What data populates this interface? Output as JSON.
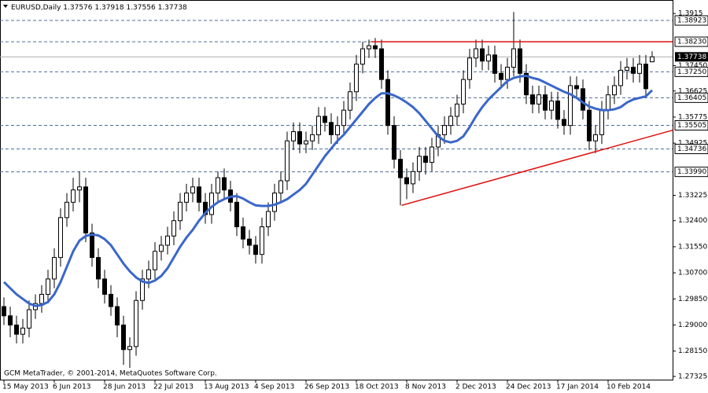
{
  "chart_data": {
    "type": "candlestick",
    "symbol": "EURUSD,Daily",
    "footer": "GCM MetaTrader, © 2001-2014, MetaQuotes Software Corp.",
    "categories": [
      "15 May 2013",
      null,
      null,
      null,
      null,
      null,
      null,
      null,
      "6 Jun 2013",
      null,
      null,
      null,
      null,
      null,
      null,
      null,
      "28 Jun 2013",
      null,
      null,
      null,
      null,
      null,
      null,
      null,
      "22 Jul 2013",
      null,
      null,
      null,
      null,
      null,
      null,
      null,
      "13 Aug 2013",
      null,
      null,
      null,
      null,
      null,
      null,
      null,
      "4 Sep 2013",
      null,
      null,
      null,
      null,
      null,
      null,
      null,
      "26 Sep 2013",
      null,
      null,
      null,
      null,
      null,
      null,
      null,
      "18 Oct 2013",
      null,
      null,
      null,
      null,
      null,
      null,
      null,
      "8 Nov 2013",
      null,
      null,
      null,
      null,
      null,
      null,
      null,
      "2 Dec 2013",
      null,
      null,
      null,
      null,
      null,
      null,
      null,
      "24 Dec 2013",
      null,
      null,
      null,
      null,
      null,
      null,
      null,
      "17 Jan 2014",
      null,
      null,
      null,
      null,
      null,
      null,
      null,
      "10 Feb 2014",
      null,
      null,
      null,
      null,
      null,
      null,
      null
    ],
    "open": [
      1.296,
      1.293,
      1.29,
      1.287,
      1.289,
      1.295,
      1.297,
      1.3,
      1.305,
      1.312,
      1.325,
      1.33,
      1.334,
      1.335,
      1.32,
      1.312,
      1.305,
      1.3,
      1.296,
      1.29,
      1.282,
      1.283,
      1.298,
      1.305,
      1.308,
      1.314,
      1.316,
      1.319,
      1.324,
      1.33,
      1.333,
      1.335,
      1.33,
      1.326,
      1.333,
      1.338,
      1.334,
      1.33,
      1.322,
      1.318,
      1.316,
      1.313,
      1.322,
      1.327,
      1.333,
      1.337,
      1.35,
      1.353,
      1.349,
      1.35,
      1.352,
      1.358,
      1.356,
      1.352,
      1.355,
      1.36,
      1.366,
      1.375,
      1.38,
      1.381,
      1.38,
      1.37,
      1.355,
      1.344,
      1.338,
      1.336,
      1.34,
      1.345,
      1.343,
      1.348,
      1.352,
      1.355,
      1.358,
      1.362,
      1.37,
      1.377,
      1.38,
      1.376,
      1.378,
      1.372,
      1.37,
      1.374,
      1.38,
      1.372,
      1.365,
      1.362,
      1.365,
      1.36,
      1.363,
      1.357,
      1.355,
      1.368,
      1.367,
      1.36,
      1.35,
      1.352,
      1.36,
      1.365,
      1.368,
      1.373,
      1.374,
      1.372,
      1.375,
      1.37576
    ],
    "high": [
      1.299,
      1.296,
      1.293,
      1.292,
      1.298,
      1.3,
      1.303,
      1.308,
      1.315,
      1.328,
      1.333,
      1.338,
      1.34,
      1.338,
      1.323,
      1.315,
      1.308,
      1.303,
      1.299,
      1.293,
      1.286,
      1.301,
      1.308,
      1.311,
      1.317,
      1.319,
      1.322,
      1.327,
      1.333,
      1.336,
      1.338,
      1.338,
      1.333,
      1.336,
      1.34,
      1.341,
      1.337,
      1.333,
      1.325,
      1.321,
      1.319,
      1.325,
      1.33,
      1.336,
      1.34,
      1.353,
      1.356,
      1.356,
      1.353,
      1.355,
      1.361,
      1.361,
      1.359,
      1.358,
      1.363,
      1.369,
      1.378,
      1.3823,
      1.383,
      1.3835,
      1.383,
      1.373,
      1.358,
      1.347,
      1.341,
      1.343,
      1.348,
      1.348,
      1.351,
      1.355,
      1.358,
      1.361,
      1.365,
      1.373,
      1.38,
      1.383,
      1.383,
      1.381,
      1.381,
      1.375,
      1.377,
      1.392,
      1.383,
      1.375,
      1.368,
      1.368,
      1.368,
      1.366,
      1.366,
      1.36,
      1.371,
      1.371,
      1.37,
      1.363,
      1.355,
      1.363,
      1.368,
      1.371,
      1.376,
      1.377,
      1.377,
      1.378,
      1.378,
      1.37918
    ],
    "low": [
      1.29,
      1.286,
      1.284,
      1.284,
      1.286,
      1.292,
      1.294,
      1.297,
      1.302,
      1.309,
      1.322,
      1.327,
      1.33,
      1.317,
      1.309,
      1.302,
      1.297,
      1.293,
      1.286,
      1.277,
      1.276,
      1.28,
      1.295,
      1.302,
      1.305,
      1.311,
      1.313,
      1.316,
      1.321,
      1.327,
      1.33,
      1.327,
      1.323,
      1.323,
      1.33,
      1.331,
      1.327,
      1.319,
      1.315,
      1.313,
      1.31,
      1.31,
      1.319,
      1.324,
      1.33,
      1.334,
      1.347,
      1.346,
      1.346,
      1.347,
      1.349,
      1.353,
      1.349,
      1.349,
      1.352,
      1.357,
      1.363,
      1.372,
      1.377,
      1.377,
      1.367,
      1.352,
      1.341,
      1.329,
      1.331,
      1.333,
      1.337,
      1.339,
      1.34,
      1.345,
      1.349,
      1.352,
      1.355,
      1.359,
      1.367,
      1.374,
      1.373,
      1.373,
      1.369,
      1.367,
      1.367,
      1.371,
      1.369,
      1.362,
      1.359,
      1.359,
      1.357,
      1.357,
      1.354,
      1.352,
      1.352,
      1.364,
      1.357,
      1.347,
      1.346,
      1.349,
      1.357,
      1.362,
      1.365,
      1.37,
      1.369,
      1.369,
      1.364,
      1.37556
    ],
    "close": [
      1.293,
      1.29,
      1.287,
      1.289,
      1.295,
      1.297,
      1.3,
      1.305,
      1.312,
      1.325,
      1.33,
      1.334,
      1.335,
      1.32,
      1.312,
      1.305,
      1.3,
      1.296,
      1.29,
      1.282,
      1.283,
      1.298,
      1.305,
      1.308,
      1.314,
      1.316,
      1.319,
      1.324,
      1.33,
      1.333,
      1.335,
      1.33,
      1.326,
      1.333,
      1.338,
      1.334,
      1.33,
      1.322,
      1.318,
      1.316,
      1.313,
      1.322,
      1.327,
      1.333,
      1.337,
      1.35,
      1.353,
      1.349,
      1.35,
      1.352,
      1.358,
      1.356,
      1.352,
      1.355,
      1.36,
      1.366,
      1.375,
      1.38,
      1.381,
      1.38,
      1.37,
      1.355,
      1.344,
      1.338,
      1.336,
      1.34,
      1.345,
      1.343,
      1.348,
      1.352,
      1.355,
      1.358,
      1.362,
      1.37,
      1.377,
      1.38,
      1.376,
      1.378,
      1.372,
      1.37,
      1.374,
      1.38,
      1.372,
      1.365,
      1.362,
      1.365,
      1.36,
      1.363,
      1.357,
      1.355,
      1.368,
      1.367,
      1.36,
      1.35,
      1.352,
      1.36,
      1.365,
      1.368,
      1.373,
      1.374,
      1.372,
      1.375,
      1.367,
      1.37738
    ],
    "moving_average": {
      "color": "#3a67c9",
      "values": [
        1.304,
        1.302,
        1.3,
        1.2985,
        1.297,
        1.2962,
        1.2965,
        1.2975,
        1.3,
        1.304,
        1.309,
        1.314,
        1.3175,
        1.319,
        1.3195,
        1.3192,
        1.318,
        1.316,
        1.313,
        1.31,
        1.3075,
        1.3055,
        1.3042,
        1.3037,
        1.3045,
        1.306,
        1.3085,
        1.312,
        1.3155,
        1.3185,
        1.321,
        1.324,
        1.3265,
        1.3285,
        1.33,
        1.331,
        1.3318,
        1.332,
        1.3312,
        1.33,
        1.329,
        1.3288,
        1.3288,
        1.3292,
        1.33,
        1.331,
        1.3325,
        1.334,
        1.336,
        1.339,
        1.342,
        1.345,
        1.3475,
        1.35,
        1.352,
        1.3545,
        1.357,
        1.3595,
        1.362,
        1.364,
        1.3655,
        1.3655,
        1.3648,
        1.3638,
        1.3625,
        1.361,
        1.359,
        1.3565,
        1.354,
        1.3515,
        1.35,
        1.3495,
        1.35,
        1.3515,
        1.3545,
        1.358,
        1.361,
        1.3635,
        1.3655,
        1.3675,
        1.3695,
        1.3705,
        1.371,
        1.3712,
        1.3705,
        1.37,
        1.369,
        1.368,
        1.367,
        1.366,
        1.3652,
        1.364,
        1.3625,
        1.3612,
        1.3605,
        1.36,
        1.36,
        1.3603,
        1.361,
        1.3625,
        1.3635,
        1.364,
        1.3645,
        1.3665
      ]
    },
    "trendlines": [
      {
        "color": "#e01010",
        "x": [
          58.4,
          106.3
        ],
        "y": [
          1.3823,
          1.3823
        ]
      },
      {
        "color": "#e01010",
        "x": [
          63.2,
          106.3
        ],
        "y": [
          1.329,
          1.3535
        ]
      }
    ],
    "levels": [
      1.38923,
      {
        "value": 1.3823,
        "label": "1.38230"
      },
      {
        "value": 1.3725,
        "label": "1.37250"
      },
      1.36405,
      1.35505,
      1.34736,
      {
        "value": 1.3399,
        "label": "1.33990"
      }
    ],
    "level_color": "#4d6d9a",
    "bull_color": "#ffffff",
    "bear_color": "#000000",
    "ylim": [
      1.2722,
      1.3959
    ],
    "yticks": [
      1.3915,
      {
        "value": 1.3745,
        "label": "1.37450"
      },
      1.36625,
      1.35775,
      1.34925,
      1.33225,
      {
        "value": 1.324,
        "label": "1.32400"
      },
      {
        "value": 1.3155,
        "label": "1.31550"
      },
      {
        "value": 1.307,
        "label": "1.30700"
      },
      {
        "value": 1.2985,
        "label": "1.29850"
      },
      {
        "value": 1.29,
        "label": "1.29000"
      },
      {
        "value": 1.2815,
        "label": "1.28150"
      },
      1.27325
    ]
  }
}
